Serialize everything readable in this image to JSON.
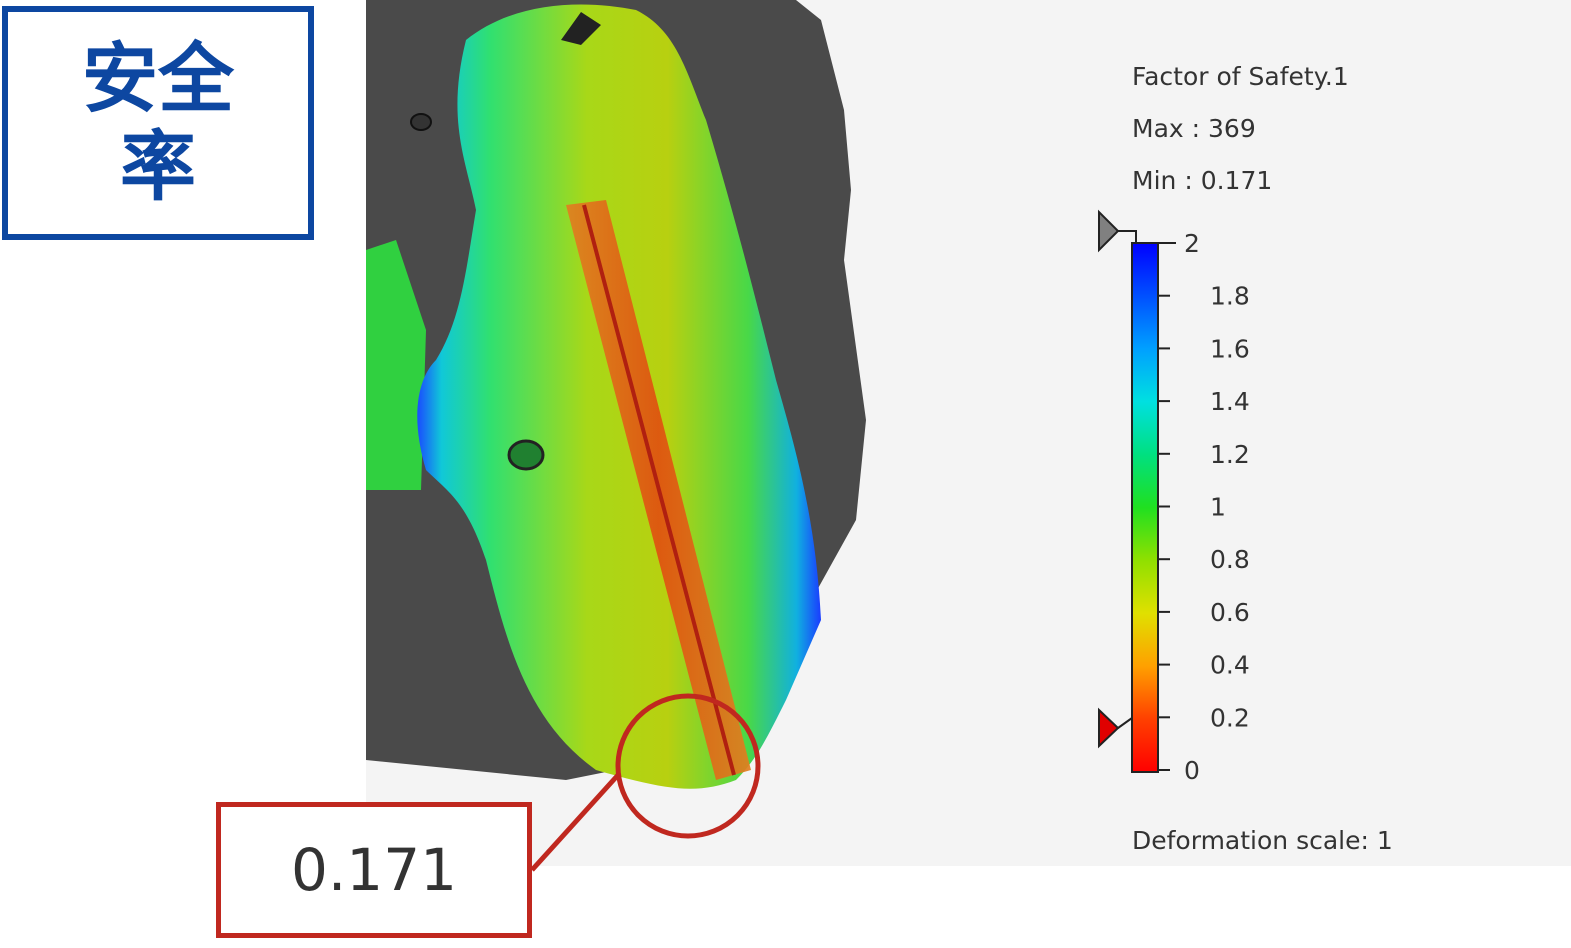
{
  "title_badge": {
    "text": "安全率",
    "color": "#0d47a1"
  },
  "legend": {
    "title": "Factor of Safety.1",
    "max_label": "Max",
    "max_value": "369",
    "min_label": "Min",
    "min_value": "0.171",
    "ticks": [
      "2",
      "1.8",
      "1.6",
      "1.4",
      "1.2",
      "1",
      "0.8",
      "0.6",
      "0.4",
      "0.2",
      "0"
    ],
    "upper_marker_value": 2,
    "lower_marker_value": 0.2,
    "upper_marker_color": "#808080",
    "lower_marker_color": "#e00000"
  },
  "deformation_scale": "Deformation scale: 1",
  "callout": {
    "value": "0.171",
    "color": "#c0281f"
  }
}
